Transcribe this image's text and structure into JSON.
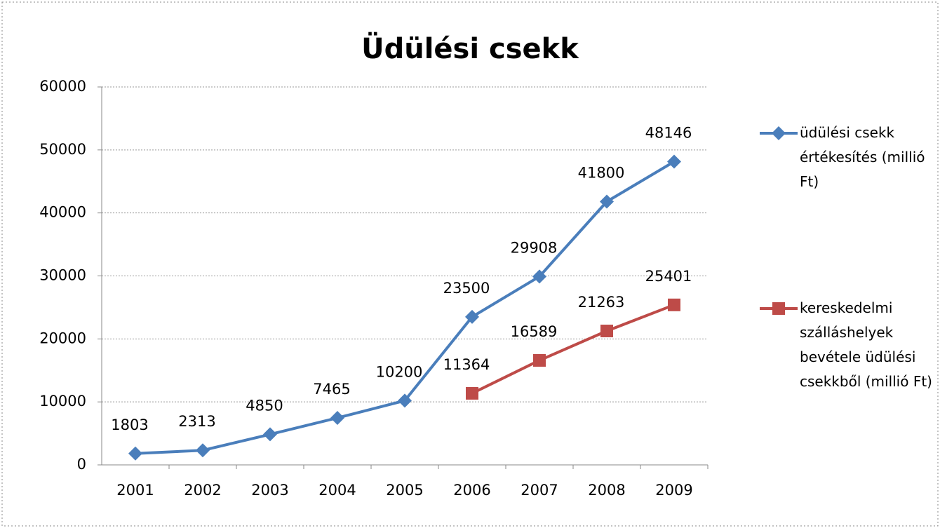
{
  "chart_data": {
    "type": "line",
    "title": "Üdülési csekk",
    "categories": [
      "2001",
      "2002",
      "2003",
      "2004",
      "2005",
      "2006",
      "2007",
      "2008",
      "2009"
    ],
    "series": [
      {
        "name": "üdülési csekk értékesítés (millió Ft)",
        "color": "#4a7ebb",
        "marker": "diamond",
        "values": [
          1803,
          2313,
          4850,
          7465,
          10200,
          23500,
          29908,
          41800,
          48146
        ]
      },
      {
        "name": "kereskedelmi szálláshelyek bevétele üdülési csekkből (millió Ft)",
        "color": "#be4b48",
        "marker": "square",
        "values": [
          null,
          null,
          null,
          null,
          null,
          11364,
          16589,
          21263,
          25401
        ]
      }
    ],
    "ylim": [
      0,
      60000
    ],
    "yticks": [
      0,
      10000,
      20000,
      30000,
      40000,
      50000,
      60000
    ],
    "grid": true,
    "legend": "right"
  }
}
